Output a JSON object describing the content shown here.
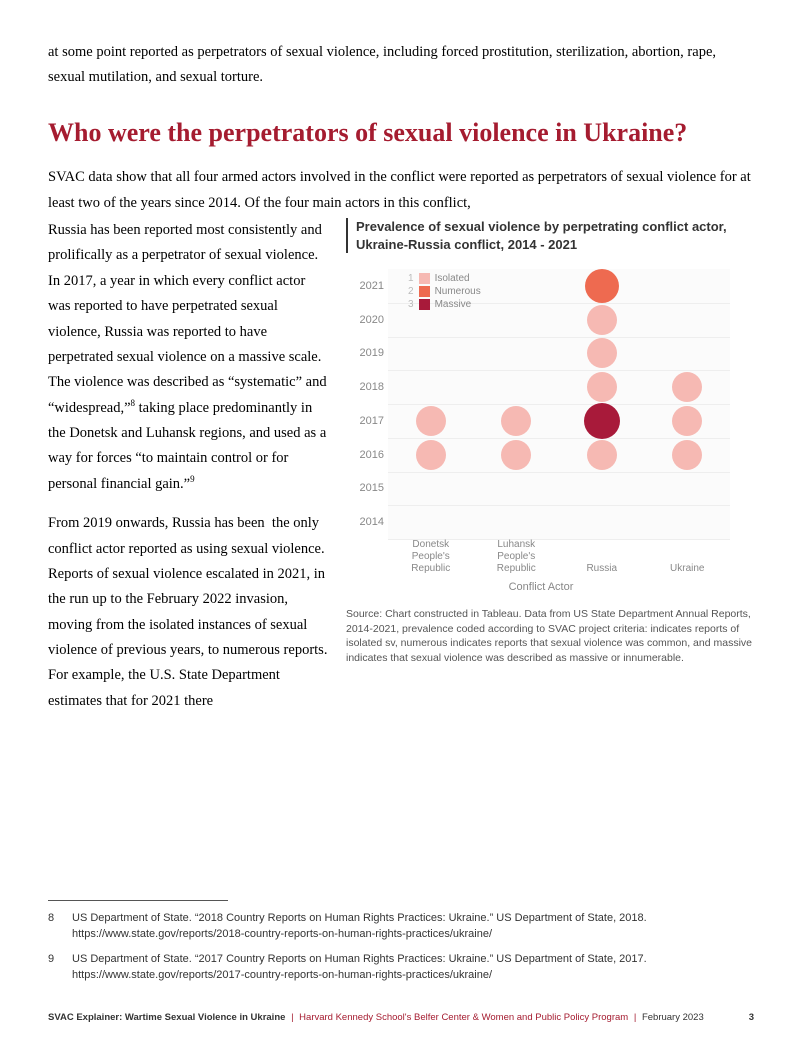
{
  "intro": "at some point reported as perpetrators of sexual violence, including forced prostitution, sterilization, abortion, rape, sexual mutilation, and sexual torture.",
  "heading": "Who were the perpetrators of sexual violence in Ukraine?",
  "full_lead": "SVAC data show that all four armed actors involved in the conflict were reported as perpetrators of sexual violence for at least two of the years since 2014. Of the four main actors in this conflict,",
  "para_left_1a": "Russia has been reported most consistently and prolifically as a perpetrator of sexual violence. In 2017, a year in which every conflict actor was reported to have perpetrated sexual violence, Russia was reported to have perpetrated sexual violence on a massive scale. The violence was described as “systematic” and “widespread,”",
  "ref8": "8",
  "para_left_1b": " taking place predominantly in the Donetsk and Luhansk regions, and used as a way for forces “to maintain control or for personal financial gain.”",
  "ref9": "9",
  "para_left_2": "From 2019 onwards, Russia has been  the only conflict actor reported as using sexual violence. Reports of sexual violence escalated in 2021, in the run up to the February 2022 invasion, moving from the isolated instances of sexual violence of previous years, to numerous reports. For example, the U.S. State Department estimates that for 2021 there",
  "chart": {
    "title": "Prevalence of sexual violence by perpetrating conflict actor, Ukraine-Russia conflict, 2014 - 2021",
    "years": [
      "2021",
      "2020",
      "2019",
      "2018",
      "2017",
      "2016",
      "2015",
      "2014"
    ],
    "actors": [
      "Donetsk People's Republic",
      "Luhansk People's Republic",
      "Russia",
      "Ukraine"
    ],
    "axis_title": "Conflict Actor",
    "legend": [
      {
        "n": "1",
        "label": "Isolated",
        "color": "#f6b9b3",
        "size": 20
      },
      {
        "n": "2",
        "label": "Numerous",
        "color": "#ee6a50",
        "size": 28
      },
      {
        "n": "3",
        "label": "Massive",
        "color": "#a81a3a",
        "size": 34
      }
    ],
    "points": [
      {
        "actor": 0,
        "year": "2017",
        "level": 1
      },
      {
        "actor": 0,
        "year": "2016",
        "level": 1
      },
      {
        "actor": 1,
        "year": "2017",
        "level": 1
      },
      {
        "actor": 1,
        "year": "2016",
        "level": 1
      },
      {
        "actor": 2,
        "year": "2021",
        "level": 2
      },
      {
        "actor": 2,
        "year": "2020",
        "level": 1
      },
      {
        "actor": 2,
        "year": "2019",
        "level": 1
      },
      {
        "actor": 2,
        "year": "2018",
        "level": 1
      },
      {
        "actor": 2,
        "year": "2017",
        "level": 3
      },
      {
        "actor": 2,
        "year": "2016",
        "level": 1
      },
      {
        "actor": 3,
        "year": "2018",
        "level": 1
      },
      {
        "actor": 3,
        "year": "2017",
        "level": 1
      },
      {
        "actor": 3,
        "year": "2016",
        "level": 1
      }
    ],
    "caption": "Source: Chart constructed in Tableau. Data from US State Department Annual Reports, 2014-2021, prevalence coded according to SVAC project criteria: indicates reports of isolated sv, numerous indicates reports that sexual violence was common, and massive indicates that sexual violence was described as massive or innumerable.",
    "colors": {
      "level1": "#f6b9b3",
      "level2": "#ee6a50",
      "level3": "#a81a3a",
      "grid": "#eeeeee",
      "sizes": {
        "1": 30,
        "2": 34,
        "3": 36
      }
    }
  },
  "footnotes": [
    {
      "n": "8",
      "text": "US Department of State. “2018 Country Reports on Human Rights Practices: Ukraine.” US Department of State, 2018. https://www.state.gov/reports/2018-country-reports-on-human-rights-practices/ukraine/"
    },
    {
      "n": "9",
      "text": "US Department of State. “2017 Country Reports on Human Rights Practices: Ukraine.” US Department of State, 2017. https://www.state.gov/reports/2017-country-reports-on-human-rights-practices/ukraine/"
    }
  ],
  "footer": {
    "bold": "SVAC Explainer: Wartime Sexual Violence in Ukraine",
    "red": "Harvard Kennedy School's Belfer Center & Women and Public Policy Program",
    "date": "February 2023",
    "page": "3"
  }
}
